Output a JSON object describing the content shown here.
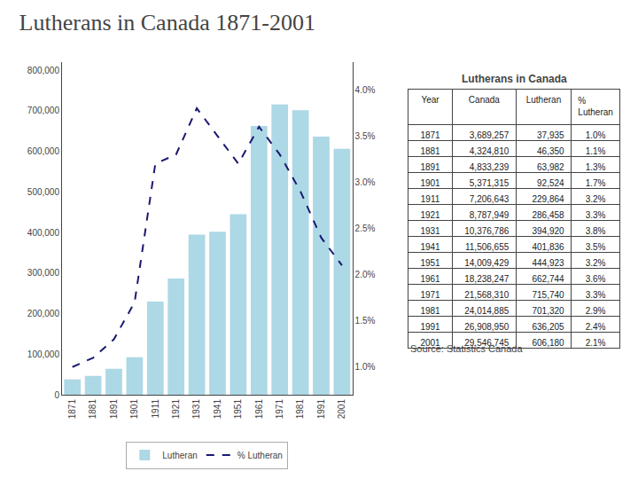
{
  "chart_data": [
    {
      "type": "bar",
      "title": "Lutherans in Canada 1871-2001",
      "categories": [
        "1871",
        "1881",
        "1891",
        "1901",
        "1911",
        "1921",
        "1931",
        "1941",
        "1951",
        "1961",
        "1971",
        "1981",
        "1991",
        "2001"
      ],
      "series": [
        {
          "name": "Lutheran",
          "type": "bar",
          "color": "#add8e6",
          "values": [
            37935,
            46350,
            63982,
            92524,
            229864,
            286458,
            394920,
            401836,
            444923,
            662744,
            715740,
            701320,
            636205,
            606180
          ]
        },
        {
          "name": "% Lutheran",
          "type": "line",
          "axis": "y2",
          "color": "#191970",
          "line_style": "dashed",
          "values": [
            1.0,
            1.1,
            1.3,
            1.7,
            3.2,
            3.3,
            3.8,
            3.5,
            3.2,
            3.6,
            3.3,
            2.9,
            2.4,
            2.1
          ]
        }
      ],
      "ylim": [
        0,
        820000
      ],
      "yticks": [
        0,
        {
          "value": 100000,
          "label": "100,000"
        },
        {
          "value": 200000,
          "label": "200,000"
        },
        {
          "value": 300000,
          "label": "300,000"
        },
        {
          "value": 400000,
          "label": "400,000"
        },
        {
          "value": 500000,
          "label": "500,000"
        },
        {
          "value": 600000,
          "label": "600,000"
        },
        {
          "value": 700000,
          "label": "700,000"
        },
        {
          "value": 800000,
          "label": "800,000"
        }
      ],
      "y2lim": [
        0.7,
        4.3
      ],
      "y2ticks": [
        {
          "value": 1.0,
          "label": "1.0%"
        },
        {
          "value": 1.5,
          "label": "1.5%"
        },
        {
          "value": 2.0,
          "label": "2.0%"
        },
        {
          "value": 2.5,
          "label": "2.5%"
        },
        {
          "value": 3.0,
          "label": "3.0%"
        },
        {
          "value": 3.5,
          "label": "3.5%"
        },
        {
          "value": 4.0,
          "label": "4.0%"
        }
      ],
      "grid": false,
      "legend": "bottom"
    },
    {
      "type": "table",
      "title": "Lutherans in Canada",
      "xlabel": "Year",
      "categories": [
        "1871",
        "1881",
        "1891",
        "1901",
        "1911",
        "1921",
        "1931",
        "1941",
        "1951",
        "1961",
        "1971",
        "1981",
        "1991",
        "2001"
      ],
      "series": [
        {
          "name": "Canada",
          "values": [
            3689257,
            4324810,
            4833239,
            5371315,
            7206643,
            8787949,
            10376786,
            11506655,
            14009429,
            18238247,
            21568310,
            24014885,
            26908950,
            29546745
          ],
          "value_labels": [
            "3,689,257",
            "4,324,810",
            "4,833,239",
            "5,371,315",
            "7,206,643",
            "8,787,949",
            "10,376,786",
            "11,506,655",
            "14,009,429",
            "18,238,247",
            "21,568,310",
            "24,014,885",
            "26,908,950",
            "29,546,745"
          ]
        },
        {
          "name": "Lutheran",
          "values": [
            37935,
            46350,
            63982,
            92524,
            229864,
            286458,
            394920,
            401836,
            444923,
            662744,
            715740,
            701320,
            636205,
            606180
          ],
          "value_labels": [
            "37,935",
            "46,350",
            "63,982",
            "92,524",
            "229,864",
            "286,458",
            "394,920",
            "401,836",
            "444,923",
            "662,744",
            "715,740",
            "701,320",
            "636,205",
            "606,180"
          ]
        },
        {
          "name": "%\nLutheran",
          "values": [
            1.0,
            1.1,
            1.3,
            1.7,
            3.2,
            3.3,
            3.8,
            3.5,
            3.2,
            3.6,
            3.3,
            2.9,
            2.4,
            2.1
          ],
          "value_labels": [
            "1.0%",
            "1.1%",
            "1.3%",
            "1.7%",
            "3.2%",
            "3.3%",
            "3.8%",
            "3.5%",
            "3.2%",
            "3.6%",
            "3.3%",
            "2.9%",
            "2.4%",
            "2.1%"
          ]
        }
      ],
      "annotations": [
        "Source: Statistics Canada"
      ]
    }
  ]
}
